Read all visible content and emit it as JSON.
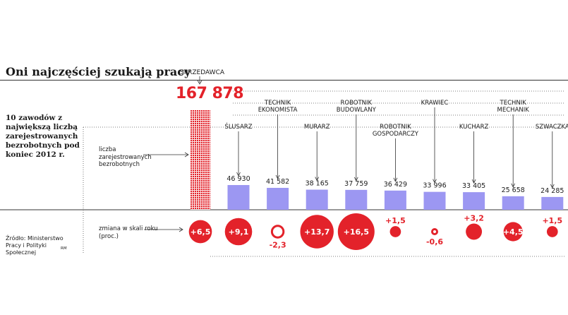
{
  "title": "Oni najczęściej szukają pracy",
  "intro": "10 zawodów z największą liczbą zarejestrowanych bezrobotnych pod koniec 2012 r.",
  "count_label": "liczba zarejestrowanych bezrobotnych",
  "change_label": "zmiana w skali roku (proc.)",
  "source": "Źródło: Ministerstwo Pracy i Polityki Społecznej",
  "credit": "RM",
  "seller": {
    "label": "SPRZEDAWCA",
    "value": "167 878",
    "count": 167878,
    "change": 6.5,
    "change_label": "+6,5"
  },
  "chart_data": {
    "type": "bar",
    "title": "Oni najczęściej szukają pracy",
    "xlabel": "",
    "ylabel": "liczba zarejestrowanych bezrobotnych",
    "categories": [
      "SPRZEDAWCA",
      "ŚLUSARZ",
      "TECHNIK EKONOMISTA",
      "MURARZ",
      "ROBOTNIK BUDOWLANY",
      "ROBOTNIK GOSPODARCZY",
      "KRAWIEC",
      "KUCHARZ",
      "TECHNIK MECHANIK",
      "SZWACZKA"
    ],
    "values": [
      167878,
      46930,
      41582,
      38165,
      37759,
      36429,
      33996,
      33405,
      25658,
      24285
    ],
    "value_labels": [
      "167 878",
      "46 930",
      "41 582",
      "38 165",
      "37 759",
      "36 429",
      "33 996",
      "33 405",
      "25 658",
      "24 285"
    ],
    "change": [
      6.5,
      9.1,
      -2.3,
      13.7,
      16.5,
      1.5,
      -0.6,
      3.2,
      4.5,
      1.5
    ],
    "change_labels": [
      "+6,5",
      "+9,1",
      "-2,3",
      "+13,7",
      "+16,5",
      "+1,5",
      "-0,6",
      "+3,2",
      "+4,5",
      "+1,5"
    ],
    "change_label": "zmiana w skali roku (proc.)",
    "colors": {
      "bar": "#9c97f2",
      "seller_bar": "#e3222a",
      "circle": "#e3222a",
      "text": "#1a1a1a",
      "rule": "#333333"
    }
  },
  "occupations": [
    {
      "name": "ŚLUSARZ",
      "lines": [
        "ŚLUSARZ"
      ]
    },
    {
      "name": "TECHNIK EKONOMISTA",
      "lines": [
        "TECHNIK",
        "EKONOMISTA"
      ]
    },
    {
      "name": "MURARZ",
      "lines": [
        "MURARZ"
      ]
    },
    {
      "name": "ROBOTNIK BUDOWLANY",
      "lines": [
        "ROBOTNIK",
        "BUDOWLANY"
      ]
    },
    {
      "name": "ROBOTNIK GOSPODARCZY",
      "lines": [
        "ROBOTNIK",
        "GOSPODARCZY"
      ]
    },
    {
      "name": "KRAWIEC",
      "lines": [
        "KRAWIEC"
      ]
    },
    {
      "name": "KUCHARZ",
      "lines": [
        "KUCHARZ"
      ]
    },
    {
      "name": "TECHNIK MECHANIK",
      "lines": [
        "TECHNIK",
        "MECHANIK"
      ]
    },
    {
      "name": "SZWACZKA",
      "lines": [
        "SZWACZKA"
      ]
    }
  ]
}
